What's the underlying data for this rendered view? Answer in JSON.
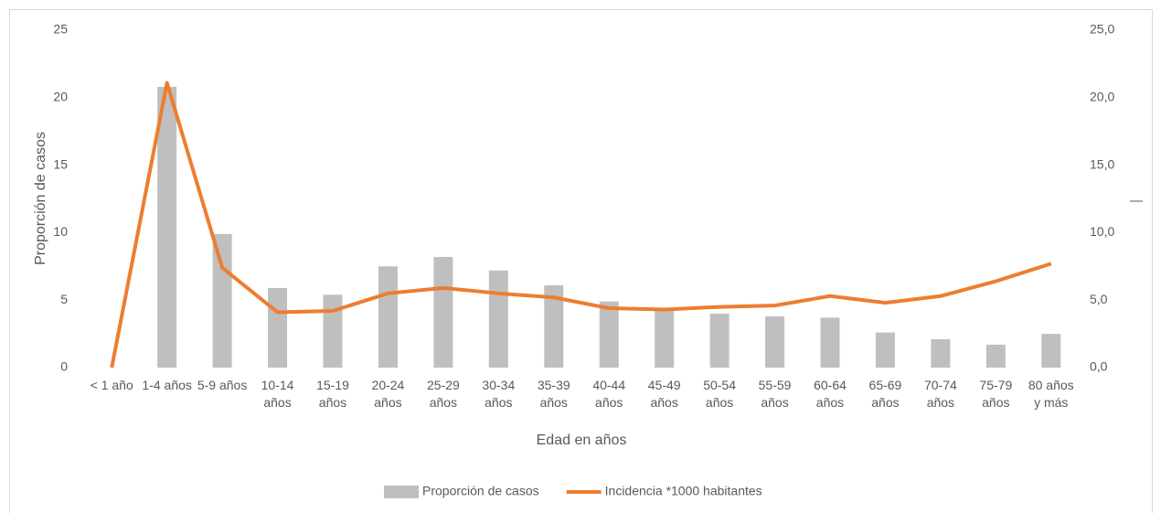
{
  "chart_data": {
    "type": "bar_line",
    "x_label": "Edad en años",
    "y_label": "Proporción de casos",
    "categories": [
      "< 1 año",
      "1-4 años",
      "5-9 años",
      "10-14 años",
      "15-19 años",
      "20-24 años",
      "25-29 años",
      "30-34 años",
      "35-39 años",
      "40-44 años",
      "45-49 años",
      "50-54 años",
      "55-59 años",
      "60-64 años",
      "65-69 años",
      "70-74 años",
      "75-79 años",
      "80 años y más"
    ],
    "series": [
      {
        "name": "Proporción de casos",
        "type": "bar",
        "color": "#bfbfbf",
        "values": [
          0,
          20.8,
          9.9,
          5.9,
          5.4,
          7.5,
          8.2,
          7.2,
          6.1,
          4.9,
          4.3,
          4.0,
          3.8,
          3.7,
          2.6,
          2.1,
          1.7,
          2.5
        ]
      },
      {
        "name": "Incidencia  *1000 habitantes",
        "type": "line",
        "axis": "y2",
        "color": "#ed7d31",
        "values": [
          0,
          21.1,
          7.4,
          4.1,
          4.2,
          5.5,
          5.9,
          5.5,
          5.2,
          4.4,
          4.3,
          4.5,
          4.6,
          5.3,
          4.8,
          5.3,
          6.4,
          7.7
        ]
      }
    ],
    "ylim": [
      0,
      25
    ],
    "yticks": [
      0,
      5,
      10,
      15,
      20,
      25
    ],
    "y2lim": [
      0,
      25
    ],
    "y2ticks": [
      {
        "value": 0,
        "label": "0,0"
      },
      {
        "value": 5,
        "label": "5,0"
      },
      {
        "value": 10,
        "label": "10,0"
      },
      {
        "value": 15,
        "label": "15,0"
      },
      {
        "value": 20,
        "label": "20,0"
      },
      {
        "value": 25,
        "label": "25,0"
      }
    ],
    "grid": false,
    "legend": "bottom"
  }
}
